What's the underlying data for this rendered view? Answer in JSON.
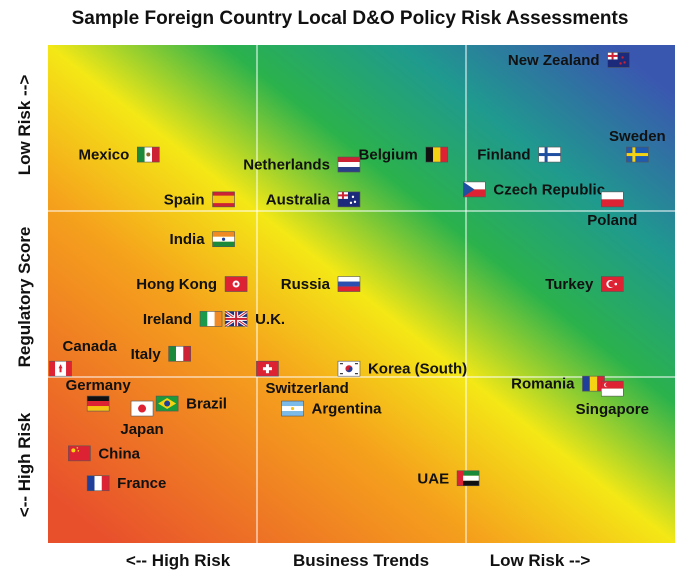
{
  "chart_data": {
    "type": "scatter",
    "title": "Sample Foreign Country Local D&O Policy Risk Assessments",
    "xlabel": "Business Trends",
    "ylabel": "Regulatory Score",
    "x_low_label": "<-- High Risk",
    "x_high_label": "Low Risk -->",
    "y_low_label": "<-- High Risk",
    "y_high_label": "Low Risk -->",
    "xlim": [
      0,
      100
    ],
    "ylim": [
      0,
      100
    ],
    "grid": true,
    "points": [
      {
        "label": "New Zealand",
        "x": 91,
        "y": 97,
        "flag": "nz-flag",
        "label_side": "left"
      },
      {
        "label": "Sweden",
        "x": 94,
        "y": 78,
        "flag": "sweden-flag",
        "label_side": "above"
      },
      {
        "label": "Mexico",
        "x": 16,
        "y": 78,
        "flag": "mexico-flag",
        "label_side": "left"
      },
      {
        "label": "Belgium",
        "x": 62,
        "y": 78,
        "flag": "belgium-flag",
        "label_side": "left"
      },
      {
        "label": "Finland",
        "x": 80,
        "y": 78,
        "flag": "finland-flag",
        "label_side": "left"
      },
      {
        "label": "Netherlands",
        "x": 48,
        "y": 76,
        "flag": "netherlands-flag",
        "label_side": "left"
      },
      {
        "label": "Czech Republic",
        "x": 68,
        "y": 71,
        "flag": "czech-flag",
        "label_side": "right"
      },
      {
        "label": "Poland",
        "x": 90,
        "y": 69,
        "flag": "poland-flag",
        "label_side": "below"
      },
      {
        "label": "Spain",
        "x": 28,
        "y": 69,
        "flag": "spain-flag",
        "label_side": "left"
      },
      {
        "label": "Australia",
        "x": 48,
        "y": 69,
        "flag": "australia-flag",
        "label_side": "left"
      },
      {
        "label": "India",
        "x": 28,
        "y": 61,
        "flag": "india-flag",
        "label_side": "left"
      },
      {
        "label": "Hong Kong",
        "x": 30,
        "y": 52,
        "flag": "hongkong-flag",
        "label_side": "left"
      },
      {
        "label": "Russia",
        "x": 48,
        "y": 52,
        "flag": "russia-flag",
        "label_side": "left"
      },
      {
        "label": "Turkey",
        "x": 90,
        "y": 52,
        "flag": "turkey-flag",
        "label_side": "left"
      },
      {
        "label": "Ireland",
        "x": 26,
        "y": 45,
        "flag": "ireland-flag",
        "label_side": "left"
      },
      {
        "label": "U.K.",
        "x": 30,
        "y": 45,
        "flag": "uk-flag",
        "label_side": "right"
      },
      {
        "label": "Italy",
        "x": 21,
        "y": 38,
        "flag": "italy-flag",
        "label_side": "left"
      },
      {
        "label": "Canada",
        "x": 2,
        "y": 35,
        "flag": "canada-flag",
        "label_side": "above-right"
      },
      {
        "label": "Germany",
        "x": 8,
        "y": 28,
        "flag": "germany-flag",
        "label_side": "above"
      },
      {
        "label": "Switzerland",
        "x": 35,
        "y": 35,
        "flag": "switzerland-flag",
        "label_side": "below-right"
      },
      {
        "label": "Korea (South)",
        "x": 48,
        "y": 35,
        "flag": "korea-flag",
        "label_side": "right"
      },
      {
        "label": "Romania",
        "x": 87,
        "y": 32,
        "flag": "romania-flag",
        "label_side": "left"
      },
      {
        "label": "Singapore",
        "x": 90,
        "y": 31,
        "flag": "singapore-flag",
        "label_side": "below"
      },
      {
        "label": "Brazil",
        "x": 19,
        "y": 28,
        "flag": "brazil-flag",
        "label_side": "right"
      },
      {
        "label": "Japan",
        "x": 15,
        "y": 27,
        "flag": "japan-flag",
        "label_side": "below"
      },
      {
        "label": "Argentina",
        "x": 39,
        "y": 27,
        "flag": "argentina-flag",
        "label_side": "right"
      },
      {
        "label": "China",
        "x": 5,
        "y": 18,
        "flag": "china-flag",
        "label_side": "right"
      },
      {
        "label": "UAE",
        "x": 67,
        "y": 13,
        "flag": "uae-flag",
        "label_side": "left"
      },
      {
        "label": "France",
        "x": 8,
        "y": 12,
        "flag": "france-flag",
        "label_side": "right"
      }
    ]
  },
  "colors": {
    "high_risk": "#e8502c",
    "mid_yellow": "#f4e816",
    "mid_green": "#2bb24c",
    "low_risk": "#3a57b0",
    "gridline": "#ffffff"
  }
}
